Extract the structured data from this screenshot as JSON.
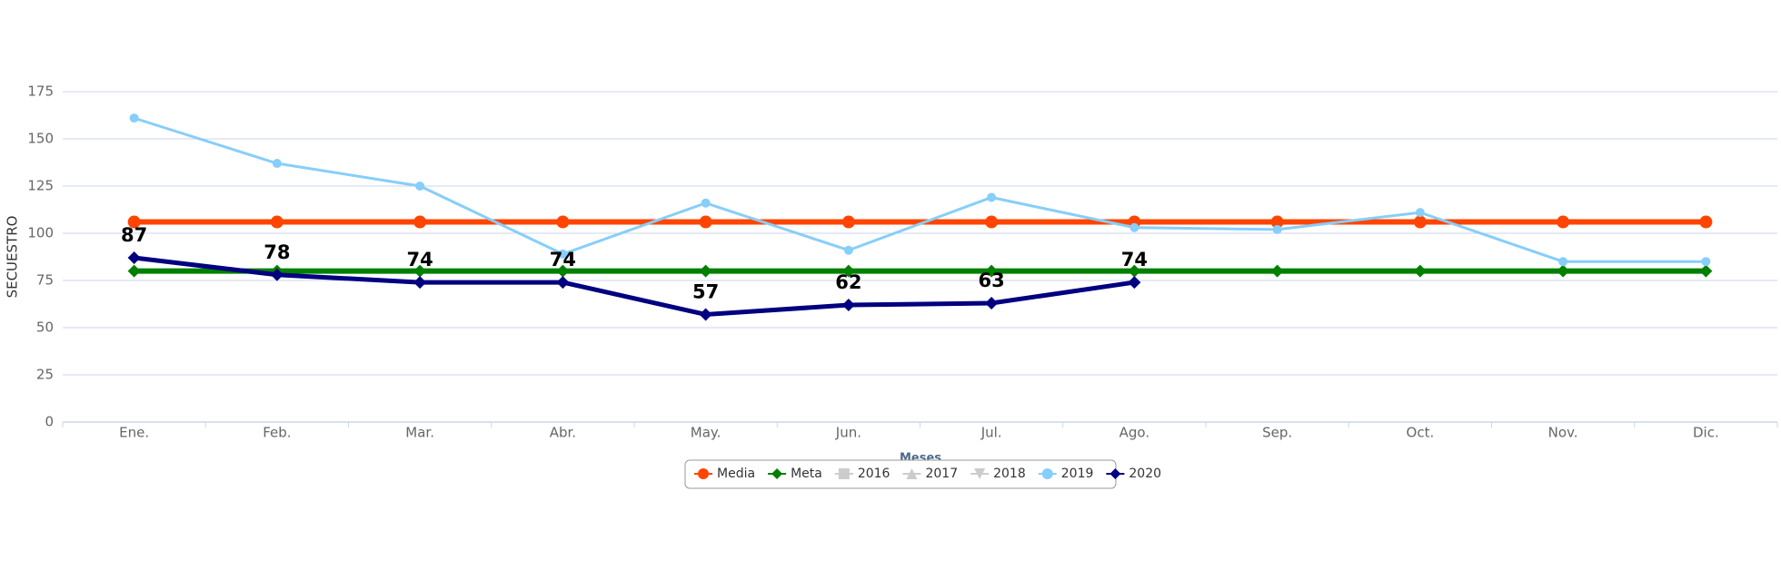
{
  "chart_data": {
    "type": "line",
    "x_label": "Meses",
    "y_label": "SECUESTRO",
    "categories": [
      "Ene.",
      "Feb.",
      "Mar.",
      "Abr.",
      "May.",
      "Jun.",
      "Jul.",
      "Ago.",
      "Sep.",
      "Oct.",
      "Nov.",
      "Dic."
    ],
    "ylim": [
      0,
      175
    ],
    "yticks": [
      0,
      25,
      50,
      75,
      100,
      125,
      150,
      175
    ],
    "grid": true,
    "series": [
      {
        "name": "Media",
        "color": "#ff4500",
        "marker": "circle",
        "visible": true,
        "values": [
          106,
          106,
          106,
          106,
          106,
          106,
          106,
          106,
          106,
          106,
          106,
          106
        ]
      },
      {
        "name": "Meta",
        "color": "#008000",
        "marker": "diamond",
        "visible": true,
        "values": [
          80,
          80,
          80,
          80,
          80,
          80,
          80,
          80,
          80,
          80,
          80,
          80
        ]
      },
      {
        "name": "2016",
        "color": "#cccccc",
        "marker": "square",
        "visible": false,
        "values": [
          null,
          null,
          null,
          null,
          null,
          null,
          null,
          null,
          null,
          null,
          null,
          null
        ]
      },
      {
        "name": "2017",
        "color": "#cccccc",
        "marker": "triangle",
        "visible": false,
        "values": [
          null,
          null,
          null,
          null,
          null,
          null,
          null,
          null,
          null,
          null,
          null,
          null
        ]
      },
      {
        "name": "2018",
        "color": "#cccccc",
        "marker": "triangle-down",
        "visible": false,
        "values": [
          null,
          null,
          null,
          null,
          null,
          null,
          null,
          null,
          null,
          null,
          null,
          null
        ]
      },
      {
        "name": "2019",
        "color": "#87cefa",
        "marker": "circle",
        "visible": true,
        "values": [
          161,
          137,
          125,
          89,
          116,
          91,
          119,
          103,
          102,
          111,
          85,
          85
        ]
      },
      {
        "name": "2020",
        "color": "#000080",
        "marker": "diamond",
        "visible": true,
        "data_labels": true,
        "values": [
          87,
          78,
          74,
          74,
          57,
          62,
          63,
          74,
          null,
          null,
          null,
          null
        ]
      }
    ]
  }
}
